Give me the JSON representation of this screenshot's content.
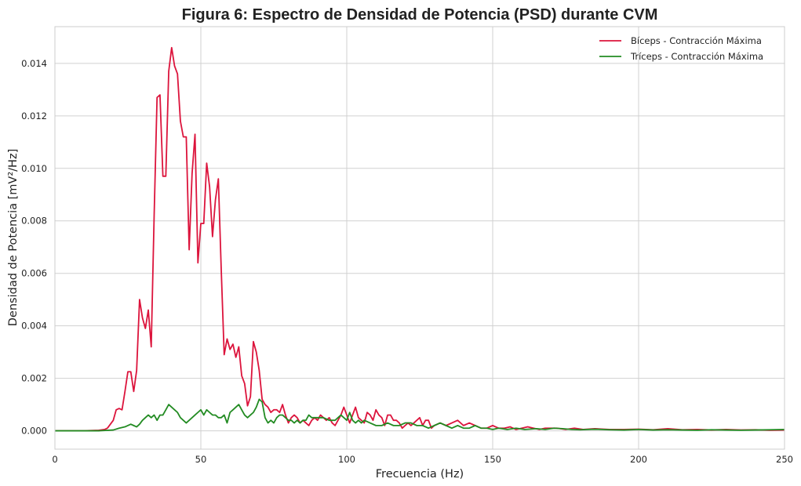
{
  "chart_data": {
    "type": "line",
    "title": "Figura 6: Espectro de Densidad de Potencia (PSD) durante CVM",
    "xlabel": "Frecuencia (Hz)",
    "ylabel": "Densidad de Potencia [mV²/Hz]",
    "xlim": [
      0,
      250
    ],
    "ylim": [
      -0.0007,
      0.0154
    ],
    "xticks": [
      0,
      50,
      100,
      150,
      200,
      250
    ],
    "xtick_labels": [
      "0",
      "50",
      "100",
      "150",
      "200",
      "250"
    ],
    "yticks": [
      0.0,
      0.002,
      0.004,
      0.006,
      0.008,
      0.01,
      0.012,
      0.014
    ],
    "ytick_labels": [
      "0.000",
      "0.002",
      "0.004",
      "0.006",
      "0.008",
      "0.010",
      "0.012",
      "0.014"
    ],
    "grid": true,
    "legend_position": "top-right",
    "series": [
      {
        "name": "Bíceps - Contracción Máxima",
        "color": "#dc143c",
        "points": [
          [
            0,
            0
          ],
          [
            10,
            0
          ],
          [
            15,
            2e-05
          ],
          [
            17,
            5e-05
          ],
          [
            18,
            0.0001
          ],
          [
            19,
            0.00025
          ],
          [
            20,
            0.0004
          ],
          [
            21,
            0.0008
          ],
          [
            22,
            0.00085
          ],
          [
            23,
            0.0008
          ],
          [
            24,
            0.0015
          ],
          [
            25,
            0.00225
          ],
          [
            26,
            0.00225
          ],
          [
            27,
            0.0015
          ],
          [
            28,
            0.0023
          ],
          [
            29,
            0.005
          ],
          [
            30,
            0.0043
          ],
          [
            31,
            0.0039
          ],
          [
            32,
            0.0046
          ],
          [
            33,
            0.0032
          ],
          [
            34,
            0.0082
          ],
          [
            35,
            0.0127
          ],
          [
            36,
            0.0128
          ],
          [
            37,
            0.0097
          ],
          [
            38,
            0.0097
          ],
          [
            39,
            0.0137
          ],
          [
            40,
            0.0146
          ],
          [
            41,
            0.0139
          ],
          [
            42,
            0.0136
          ],
          [
            43,
            0.0118
          ],
          [
            44,
            0.0112
          ],
          [
            45,
            0.0112
          ],
          [
            46,
            0.0069
          ],
          [
            47,
            0.0098
          ],
          [
            48,
            0.0113
          ],
          [
            49,
            0.0064
          ],
          [
            50,
            0.0079
          ],
          [
            51,
            0.0079
          ],
          [
            52,
            0.0102
          ],
          [
            53,
            0.0093
          ],
          [
            54,
            0.0074
          ],
          [
            55,
            0.0088
          ],
          [
            56,
            0.0096
          ],
          [
            57,
            0.0061
          ],
          [
            58,
            0.0029
          ],
          [
            59,
            0.0035
          ],
          [
            60,
            0.0031
          ],
          [
            61,
            0.0033
          ],
          [
            62,
            0.0028
          ],
          [
            63,
            0.0032
          ],
          [
            64,
            0.0021
          ],
          [
            65,
            0.0018
          ],
          [
            66,
            0.00095
          ],
          [
            67,
            0.0013
          ],
          [
            68,
            0.0034
          ],
          [
            69,
            0.003
          ],
          [
            70,
            0.0023
          ],
          [
            71,
            0.0012
          ],
          [
            72,
            0.001
          ],
          [
            73,
            0.0009
          ],
          [
            74,
            0.0007
          ],
          [
            75,
            0.0008
          ],
          [
            76,
            0.0008
          ],
          [
            77,
            0.0007
          ],
          [
            78,
            0.001
          ],
          [
            79,
            0.0006
          ],
          [
            80,
            0.0003
          ],
          [
            81,
            0.0005
          ],
          [
            82,
            0.0006
          ],
          [
            83,
            0.0005
          ],
          [
            84,
            0.0003
          ],
          [
            85,
            0.0004
          ],
          [
            86,
            0.0003
          ],
          [
            87,
            0.0002
          ],
          [
            88,
            0.0004
          ],
          [
            89,
            0.0005
          ],
          [
            90,
            0.0004
          ],
          [
            91,
            0.0006
          ],
          [
            92,
            0.0005
          ],
          [
            93,
            0.0004
          ],
          [
            94,
            0.0005
          ],
          [
            95,
            0.0003
          ],
          [
            96,
            0.0002
          ],
          [
            97,
            0.0004
          ],
          [
            98,
            0.0006
          ],
          [
            99,
            0.0009
          ],
          [
            100,
            0.0006
          ],
          [
            101,
            0.0003
          ],
          [
            102,
            0.0006
          ],
          [
            103,
            0.0009
          ],
          [
            104,
            0.0005
          ],
          [
            105,
            0.0004
          ],
          [
            106,
            0.0003
          ],
          [
            107,
            0.0007
          ],
          [
            108,
            0.0006
          ],
          [
            109,
            0.0004
          ],
          [
            110,
            0.0008
          ],
          [
            111,
            0.0006
          ],
          [
            112,
            0.0005
          ],
          [
            113,
            0.0002
          ],
          [
            114,
            0.0006
          ],
          [
            115,
            0.0006
          ],
          [
            116,
            0.0004
          ],
          [
            117,
            0.0004
          ],
          [
            118,
            0.0003
          ],
          [
            119,
            0.0001
          ],
          [
            120,
            0.0002
          ],
          [
            121,
            0.0003
          ],
          [
            122,
            0.0002
          ],
          [
            123,
            0.0003
          ],
          [
            124,
            0.0004
          ],
          [
            125,
            0.0005
          ],
          [
            126,
            0.0002
          ],
          [
            127,
            0.0004
          ],
          [
            128,
            0.0004
          ],
          [
            129,
            0.0001
          ],
          [
            130,
            0.0002
          ],
          [
            132,
            0.0003
          ],
          [
            134,
            0.0002
          ],
          [
            136,
            0.0003
          ],
          [
            138,
            0.0004
          ],
          [
            140,
            0.0002
          ],
          [
            142,
            0.0003
          ],
          [
            144,
            0.0002
          ],
          [
            146,
            0.0001
          ],
          [
            148,
            0.0001
          ],
          [
            150,
            0.0002
          ],
          [
            152,
            0.0001
          ],
          [
            154,
            0.0001
          ],
          [
            156,
            0.00015
          ],
          [
            158,
            5e-05
          ],
          [
            160,
            0.0001
          ],
          [
            162,
            0.00015
          ],
          [
            164,
            0.0001
          ],
          [
            166,
            5e-05
          ],
          [
            168,
            0.0001
          ],
          [
            170,
            0.0001
          ],
          [
            172,
            0.0001
          ],
          [
            175,
            5e-05
          ],
          [
            178,
            0.0001
          ],
          [
            181,
            5e-05
          ],
          [
            185,
            8e-05
          ],
          [
            190,
            5e-05
          ],
          [
            195,
            5e-05
          ],
          [
            200,
            6e-05
          ],
          [
            205,
            4e-05
          ],
          [
            210,
            8e-05
          ],
          [
            215,
            4e-05
          ],
          [
            220,
            5e-05
          ],
          [
            225,
            3e-05
          ],
          [
            230,
            5e-05
          ],
          [
            235,
            3e-05
          ],
          [
            240,
            4e-05
          ],
          [
            245,
            2e-05
          ],
          [
            250,
            3e-05
          ]
        ]
      },
      {
        "name": "Tríceps - Contracción Máxima",
        "color": "#228b22",
        "points": [
          [
            0,
            0
          ],
          [
            10,
            0
          ],
          [
            15,
            0
          ],
          [
            20,
            3e-05
          ],
          [
            22,
            0.0001
          ],
          [
            24,
            0.00015
          ],
          [
            26,
            0.00025
          ],
          [
            27,
            0.0002
          ],
          [
            28,
            0.00015
          ],
          [
            29,
            0.00025
          ],
          [
            30,
            0.0004
          ],
          [
            31,
            0.0005
          ],
          [
            32,
            0.0006
          ],
          [
            33,
            0.0005
          ],
          [
            34,
            0.0006
          ],
          [
            35,
            0.0004
          ],
          [
            36,
            0.0006
          ],
          [
            37,
            0.0006
          ],
          [
            38,
            0.0008
          ],
          [
            39,
            0.001
          ],
          [
            40,
            0.0009
          ],
          [
            41,
            0.0008
          ],
          [
            42,
            0.0007
          ],
          [
            43,
            0.0005
          ],
          [
            44,
            0.0004
          ],
          [
            45,
            0.0003
          ],
          [
            46,
            0.0004
          ],
          [
            47,
            0.0005
          ],
          [
            48,
            0.0006
          ],
          [
            49,
            0.0007
          ],
          [
            50,
            0.0008
          ],
          [
            51,
            0.0006
          ],
          [
            52,
            0.0008
          ],
          [
            53,
            0.0007
          ],
          [
            54,
            0.0006
          ],
          [
            55,
            0.0006
          ],
          [
            56,
            0.0005
          ],
          [
            57,
            0.0005
          ],
          [
            58,
            0.0006
          ],
          [
            59,
            0.0003
          ],
          [
            60,
            0.0007
          ],
          [
            61,
            0.0008
          ],
          [
            62,
            0.0009
          ],
          [
            63,
            0.001
          ],
          [
            64,
            0.0008
          ],
          [
            65,
            0.0006
          ],
          [
            66,
            0.0005
          ],
          [
            67,
            0.0006
          ],
          [
            68,
            0.0007
          ],
          [
            69,
            0.0009
          ],
          [
            70,
            0.0012
          ],
          [
            71,
            0.0011
          ],
          [
            72,
            0.0005
          ],
          [
            73,
            0.0003
          ],
          [
            74,
            0.0004
          ],
          [
            75,
            0.0003
          ],
          [
            76,
            0.0005
          ],
          [
            77,
            0.0006
          ],
          [
            78,
            0.0006
          ],
          [
            79,
            0.0005
          ],
          [
            80,
            0.0004
          ],
          [
            81,
            0.0004
          ],
          [
            82,
            0.0003
          ],
          [
            83,
            0.0004
          ],
          [
            84,
            0.0003
          ],
          [
            85,
            0.0004
          ],
          [
            86,
            0.0004
          ],
          [
            87,
            0.0006
          ],
          [
            88,
            0.0005
          ],
          [
            90,
            0.0005
          ],
          [
            92,
            0.0005
          ],
          [
            94,
            0.0004
          ],
          [
            96,
            0.0004
          ],
          [
            97,
            0.0005
          ],
          [
            98,
            0.0006
          ],
          [
            99,
            0.0005
          ],
          [
            100,
            0.0004
          ],
          [
            101,
            0.0007
          ],
          [
            102,
            0.0004
          ],
          [
            103,
            0.0003
          ],
          [
            104,
            0.0004
          ],
          [
            105,
            0.0003
          ],
          [
            106,
            0.0004
          ],
          [
            108,
            0.0003
          ],
          [
            110,
            0.0002
          ],
          [
            112,
            0.0002
          ],
          [
            114,
            0.0003
          ],
          [
            116,
            0.0002
          ],
          [
            118,
            0.0002
          ],
          [
            120,
            0.0003
          ],
          [
            122,
            0.0003
          ],
          [
            124,
            0.0002
          ],
          [
            126,
            0.0002
          ],
          [
            128,
            0.0001
          ],
          [
            130,
            0.0002
          ],
          [
            132,
            0.0003
          ],
          [
            134,
            0.0002
          ],
          [
            136,
            0.0001
          ],
          [
            138,
            0.0002
          ],
          [
            140,
            0.0001
          ],
          [
            142,
            0.0001
          ],
          [
            144,
            0.0002
          ],
          [
            146,
            0.0001
          ],
          [
            148,
            0.0001
          ],
          [
            150,
            5e-05
          ],
          [
            152,
            0.0001
          ],
          [
            155,
            5e-05
          ],
          [
            158,
            0.0001
          ],
          [
            161,
            5e-05
          ],
          [
            165,
            8e-05
          ],
          [
            168,
            5e-05
          ],
          [
            171,
            0.0001
          ],
          [
            174,
            8e-05
          ],
          [
            177,
            5e-05
          ],
          [
            180,
            4e-05
          ],
          [
            185,
            6e-05
          ],
          [
            190,
            4e-05
          ],
          [
            195,
            3e-05
          ],
          [
            200,
            5e-05
          ],
          [
            205,
            3e-05
          ],
          [
            210,
            4e-05
          ],
          [
            215,
            3e-05
          ],
          [
            220,
            2e-05
          ],
          [
            225,
            4e-05
          ],
          [
            230,
            3e-05
          ],
          [
            235,
            2e-05
          ],
          [
            240,
            3e-05
          ],
          [
            245,
            4e-05
          ],
          [
            250,
            5e-05
          ]
        ]
      }
    ]
  }
}
